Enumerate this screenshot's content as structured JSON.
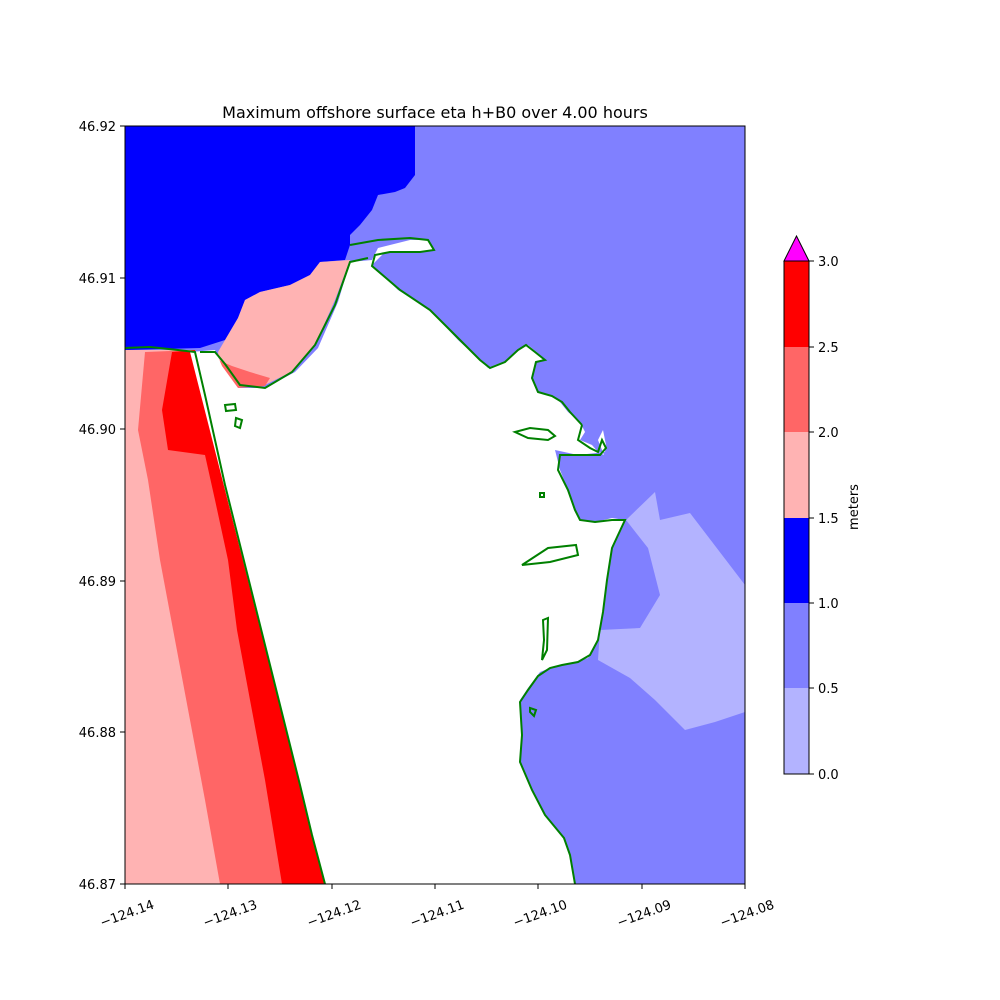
{
  "chart_data": {
    "type": "heatmap",
    "title": "Maximum offshore surface eta h+B0 over 4.00 hours",
    "xlim": [
      -124.14,
      -124.08
    ],
    "ylim": [
      46.87,
      46.92
    ],
    "x_ticks": [
      "−124.14",
      "−124.13",
      "−124.12",
      "−124.11",
      "−124.10",
      "−124.09",
      "−124.08"
    ],
    "y_ticks": [
      "46.87",
      "46.88",
      "46.89",
      "46.90",
      "46.91",
      "46.92"
    ],
    "colorbar": {
      "label": "meters",
      "ticks": [
        "0.0",
        "0.5",
        "1.0",
        "1.5",
        "2.0",
        "2.5",
        "3.0"
      ],
      "levels": [
        {
          "range": [
            0.0,
            0.5
          ],
          "color": "#b3b3ff"
        },
        {
          "range": [
            0.5,
            1.0
          ],
          "color": "#8080ff"
        },
        {
          "range": [
            1.0,
            1.5
          ],
          "color": "#0000ff"
        },
        {
          "range": [
            1.5,
            2.0
          ],
          "color": "#ffb3b3"
        },
        {
          "range": [
            2.0,
            2.5
          ],
          "color": "#ff6666"
        },
        {
          "range": [
            2.5,
            3.0
          ],
          "color": "#ff0000"
        }
      ],
      "extend_max_color": "#ff00ff"
    },
    "shoreline_color": "#008000",
    "land_color": "#ffffff"
  }
}
